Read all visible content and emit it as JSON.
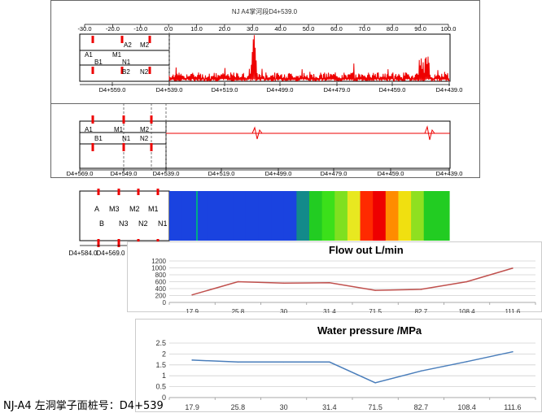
{
  "panel1": {
    "title": "NJ A4掌河段D4+539.0",
    "top_ticks": [
      "-30.0",
      "-20.0",
      "-10.0",
      "0.0",
      "10.0",
      "20.0",
      "30.0",
      "40.0",
      "50.0",
      "60.0",
      "70.0",
      "80.0",
      "90.0",
      "100.0"
    ],
    "bottom_ticks": [
      "D4+559.0",
      "D4+539.0",
      "D4+519.0",
      "D4+499.0",
      "D4+479.0",
      "D4+459.0",
      "D4+439.0"
    ],
    "labels": {
      "A1": "A1",
      "M1": "M1",
      "A2": "A2",
      "M2": "M2",
      "B1": "B1",
      "N1": "N1",
      "B2": "B2",
      "N2": "N2"
    }
  },
  "panel2": {
    "bottom_ticks": [
      "D4+569.0",
      "D4+549.0",
      "D4+539.0",
      "D4+519.0",
      "D4+499.0",
      "D4+479.0",
      "D4+459.0",
      "D4+439.0"
    ],
    "labels": {
      "A1": "A1",
      "M1": "M1",
      "M2": "M2",
      "B1": "B1",
      "N1": "N1",
      "N2": "N2"
    }
  },
  "panel3": {
    "labels": {
      "A": "A",
      "M3": "M3",
      "M2": "M2",
      "M1": "M1",
      "B": "B",
      "N3": "N3",
      "N2": "N2",
      "N1": "N1"
    },
    "bottom_ticks": [
      "D4+584.0",
      "D4+569.0"
    ],
    "color_bands": [
      "#1a43e0",
      "#1a43e0",
      "#1a43e0",
      "#1a43e0",
      "#1a43e0",
      "#1a43e0",
      "#1a43e0",
      "#1a43e0",
      "#1a43e0",
      "#1a43e0",
      "#138a8a",
      "#22cc22",
      "#3be01a",
      "#7fe020",
      "#e8e820",
      "#ff2a00",
      "#ee0000",
      "#ff8c00",
      "#f0e010",
      "#8fe020",
      "#22cc22",
      "#22cc22"
    ]
  },
  "chart_data": [
    {
      "type": "line",
      "title": "Flow out  L/min",
      "categories": [
        "17.9",
        "25.8",
        "30",
        "31.4",
        "71.5",
        "82.7",
        "108.4",
        "111.6"
      ],
      "series": [
        {
          "values": [
            220,
            600,
            560,
            570,
            350,
            380,
            600,
            990
          ]
        }
      ],
      "ylim": [
        0,
        1200
      ],
      "yticks": [
        "0",
        "200",
        "400",
        "600",
        "800",
        "1000",
        "1200"
      ],
      "grid": true,
      "color": "#c0504d"
    },
    {
      "type": "line",
      "title": "Water pressure /MPa",
      "categories": [
        "17.9",
        "25.8",
        "30",
        "31.4",
        "71.5",
        "82.7",
        "108.4",
        "111.6"
      ],
      "series": [
        {
          "values": [
            1.72,
            1.63,
            1.63,
            1.63,
            0.68,
            1.22,
            1.65,
            2.1
          ]
        }
      ],
      "ylim": [
        0,
        2.5
      ],
      "yticks": [
        "0",
        "0.5",
        "1",
        "1.5",
        "2",
        "2.5"
      ],
      "grid": true,
      "color": "#4a7ebb"
    }
  ],
  "caption": "NJ-A4 左洞掌子面桩号：D4+539"
}
